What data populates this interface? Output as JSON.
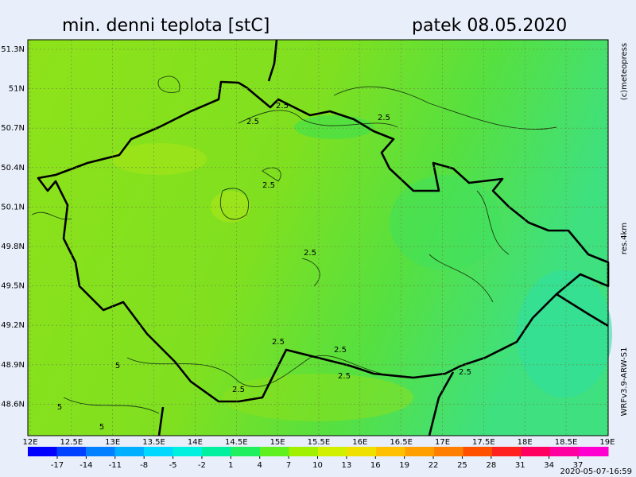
{
  "header": {
    "title": "min. denni teplota [stC]",
    "date": "patek 08.05.2020"
  },
  "side": {
    "copyright": "(c)meteopress",
    "resolution": "res.4km",
    "model": "WRFv3.9-ARW-S1"
  },
  "footer": {
    "timestamp": "2020-05-07-16:59"
  },
  "map": {
    "lat_labels": [
      "51.3N",
      "51N",
      "50.7N",
      "50.4N",
      "50.1N",
      "49.8N",
      "49.5N",
      "49.2N",
      "48.9N",
      "48.6N"
    ],
    "lon_labels": [
      "12E",
      "12.5E",
      "13E",
      "13.5E",
      "14E",
      "14.5E",
      "15E",
      "15.5E",
      "16E",
      "16.5E",
      "17E",
      "17.5E",
      "18E",
      "18.5E",
      "19E"
    ],
    "contour_labels": [
      "2.5",
      "2.5",
      "2.5",
      "2.5",
      "2.5",
      "2.5",
      "2.5",
      "2.5",
      "2.5",
      "2.5",
      "5",
      "5",
      "5"
    ]
  },
  "colorbar": {
    "ticks": [
      -17,
      -14,
      -11,
      -8,
      -5,
      -2,
      1,
      4,
      7,
      10,
      13,
      16,
      19,
      22,
      25,
      28,
      31,
      34,
      37
    ]
  }
}
